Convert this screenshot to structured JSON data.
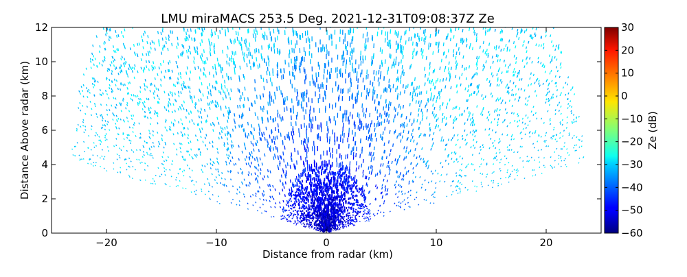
{
  "chart_data": {
    "type": "heatmap",
    "subtype": "radar RHI scan (range-height display)",
    "title": "LMU miraMACS 253.5 Deg. 2021-12-31T09:08:37Z  Ze",
    "xlabel": "Distance from radar (km)",
    "ylabel": "Distance Above radar  (km)",
    "xlim": [
      -25,
      25
    ],
    "ylim": [
      0,
      12
    ],
    "x_ticks": [
      -20,
      -10,
      0,
      10,
      20
    ],
    "y_ticks": [
      0,
      2,
      4,
      6,
      8,
      10,
      12
    ],
    "colorbar": {
      "label": "Ze (dB)",
      "colormap": "jet",
      "range": [
        -60,
        30
      ],
      "ticks": [
        -60,
        -50,
        -40,
        -30,
        -20,
        -10,
        0,
        10,
        20,
        30
      ]
    },
    "scan": {
      "elevation_min_deg": 10,
      "elevation_max_deg": 170,
      "max_range_km": 24
    },
    "field_description": {
      "near_radar_ze_db": -55,
      "mid_range_ze_db": -42,
      "far_range_ze_db": -30
    },
    "grid": false
  }
}
